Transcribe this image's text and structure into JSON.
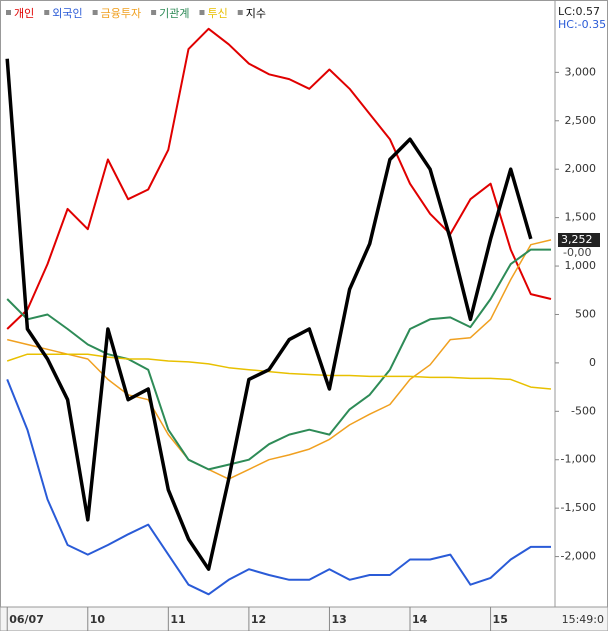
{
  "chart_data": {
    "type": "line",
    "legend_position": "top-left",
    "x": [
      9.0,
      9.25,
      9.5,
      9.75,
      10.0,
      10.25,
      10.5,
      10.75,
      11.0,
      11.25,
      11.5,
      11.75,
      12.0,
      12.25,
      12.5,
      12.75,
      13.0,
      13.25,
      13.5,
      13.75,
      14.0,
      14.25,
      14.5,
      14.75,
      15.0,
      15.25,
      15.5,
      15.75
    ],
    "xlim": [
      8.96,
      15.8
    ],
    "xticks": [
      {
        "value": 9,
        "label": "06/07"
      },
      10,
      11,
      12,
      13,
      14,
      15
    ],
    "ylim": [
      -2500,
      3520
    ],
    "yticks": [
      {
        "value": -2000,
        "label": "-2,000"
      },
      {
        "value": -1500,
        "label": "-1,500"
      },
      {
        "value": -1000,
        "label": "-1,000"
      },
      -500,
      0,
      500,
      {
        "value": 1000,
        "label": "1,000"
      },
      {
        "value": 1500,
        "label": "1,500"
      },
      {
        "value": 2000,
        "label": "2,000"
      },
      {
        "value": 2500,
        "label": "2,500"
      },
      {
        "value": 3000,
        "label": "3,000"
      }
    ],
    "lc_label": "LC:0.57",
    "hc_label": "HC:-0.35",
    "last_value_label": "3,252",
    "zero_label": "-0,00",
    "time_label": "15:49:0",
    "series": [
      {
        "name": "개인",
        "color": "#e00000",
        "width": 2,
        "values": [
          350,
          550,
          1020,
          1590,
          1380,
          2100,
          1690,
          1790,
          2200,
          3240,
          3450,
          3290,
          3090,
          2980,
          2930,
          2830,
          3030,
          2830,
          2570,
          2310,
          1850,
          1540,
          1330,
          1690,
          1850,
          1170,
          710,
          660
        ]
      },
      {
        "name": "외국인",
        "color": "#2a5bd7",
        "width": 2,
        "values": [
          -170,
          -690,
          -1410,
          -1880,
          -1980,
          -1880,
          -1770,
          -1670,
          -1980,
          -2290,
          -2390,
          -2240,
          -2130,
          -2190,
          -2240,
          -2240,
          -2130,
          -2240,
          -2190,
          -2190,
          -2030,
          -2030,
          -1980,
          -2290,
          -2220,
          -2030,
          -1900,
          -1900
        ]
      },
      {
        "name": "금융투자",
        "color": "#f0a020",
        "width": 1.5,
        "values": [
          240,
          190,
          140,
          90,
          40,
          -170,
          -330,
          -380,
          -740,
          -1000,
          -1100,
          -1200,
          -1100,
          -1000,
          -950,
          -890,
          -790,
          -640,
          -530,
          -430,
          -170,
          -20,
          240,
          260,
          450,
          860,
          1220,
          1270
        ]
      },
      {
        "name": "기관계",
        "color": "#2e8b57",
        "width": 2,
        "values": [
          660,
          450,
          500,
          350,
          190,
          90,
          40,
          -70,
          -690,
          -1000,
          -1100,
          -1050,
          -1000,
          -840,
          -740,
          -690,
          -740,
          -480,
          -330,
          -70,
          350,
          450,
          470,
          370,
          660,
          1020,
          1170,
          1170
        ]
      },
      {
        "name": "투신",
        "color": "#e8c000",
        "width": 1.5,
        "values": [
          20,
          90,
          90,
          90,
          90,
          60,
          40,
          40,
          20,
          10,
          -10,
          -50,
          -70,
          -90,
          -110,
          -120,
          -130,
          -130,
          -140,
          -140,
          -140,
          -150,
          -150,
          -160,
          -160,
          -170,
          -250,
          -270
        ]
      },
      {
        "name": "지수",
        "color": "#000000",
        "width": 3.5,
        "values": [
          3140,
          350,
          40,
          -380,
          -1620,
          350,
          -380,
          -270,
          -1310,
          -1820,
          -2130,
          -1200,
          -170,
          -70,
          240,
          350,
          -270,
          760,
          1230,
          2100,
          2310,
          2000,
          1280,
          450,
          1280,
          2000,
          1280,
          null
        ]
      }
    ]
  }
}
